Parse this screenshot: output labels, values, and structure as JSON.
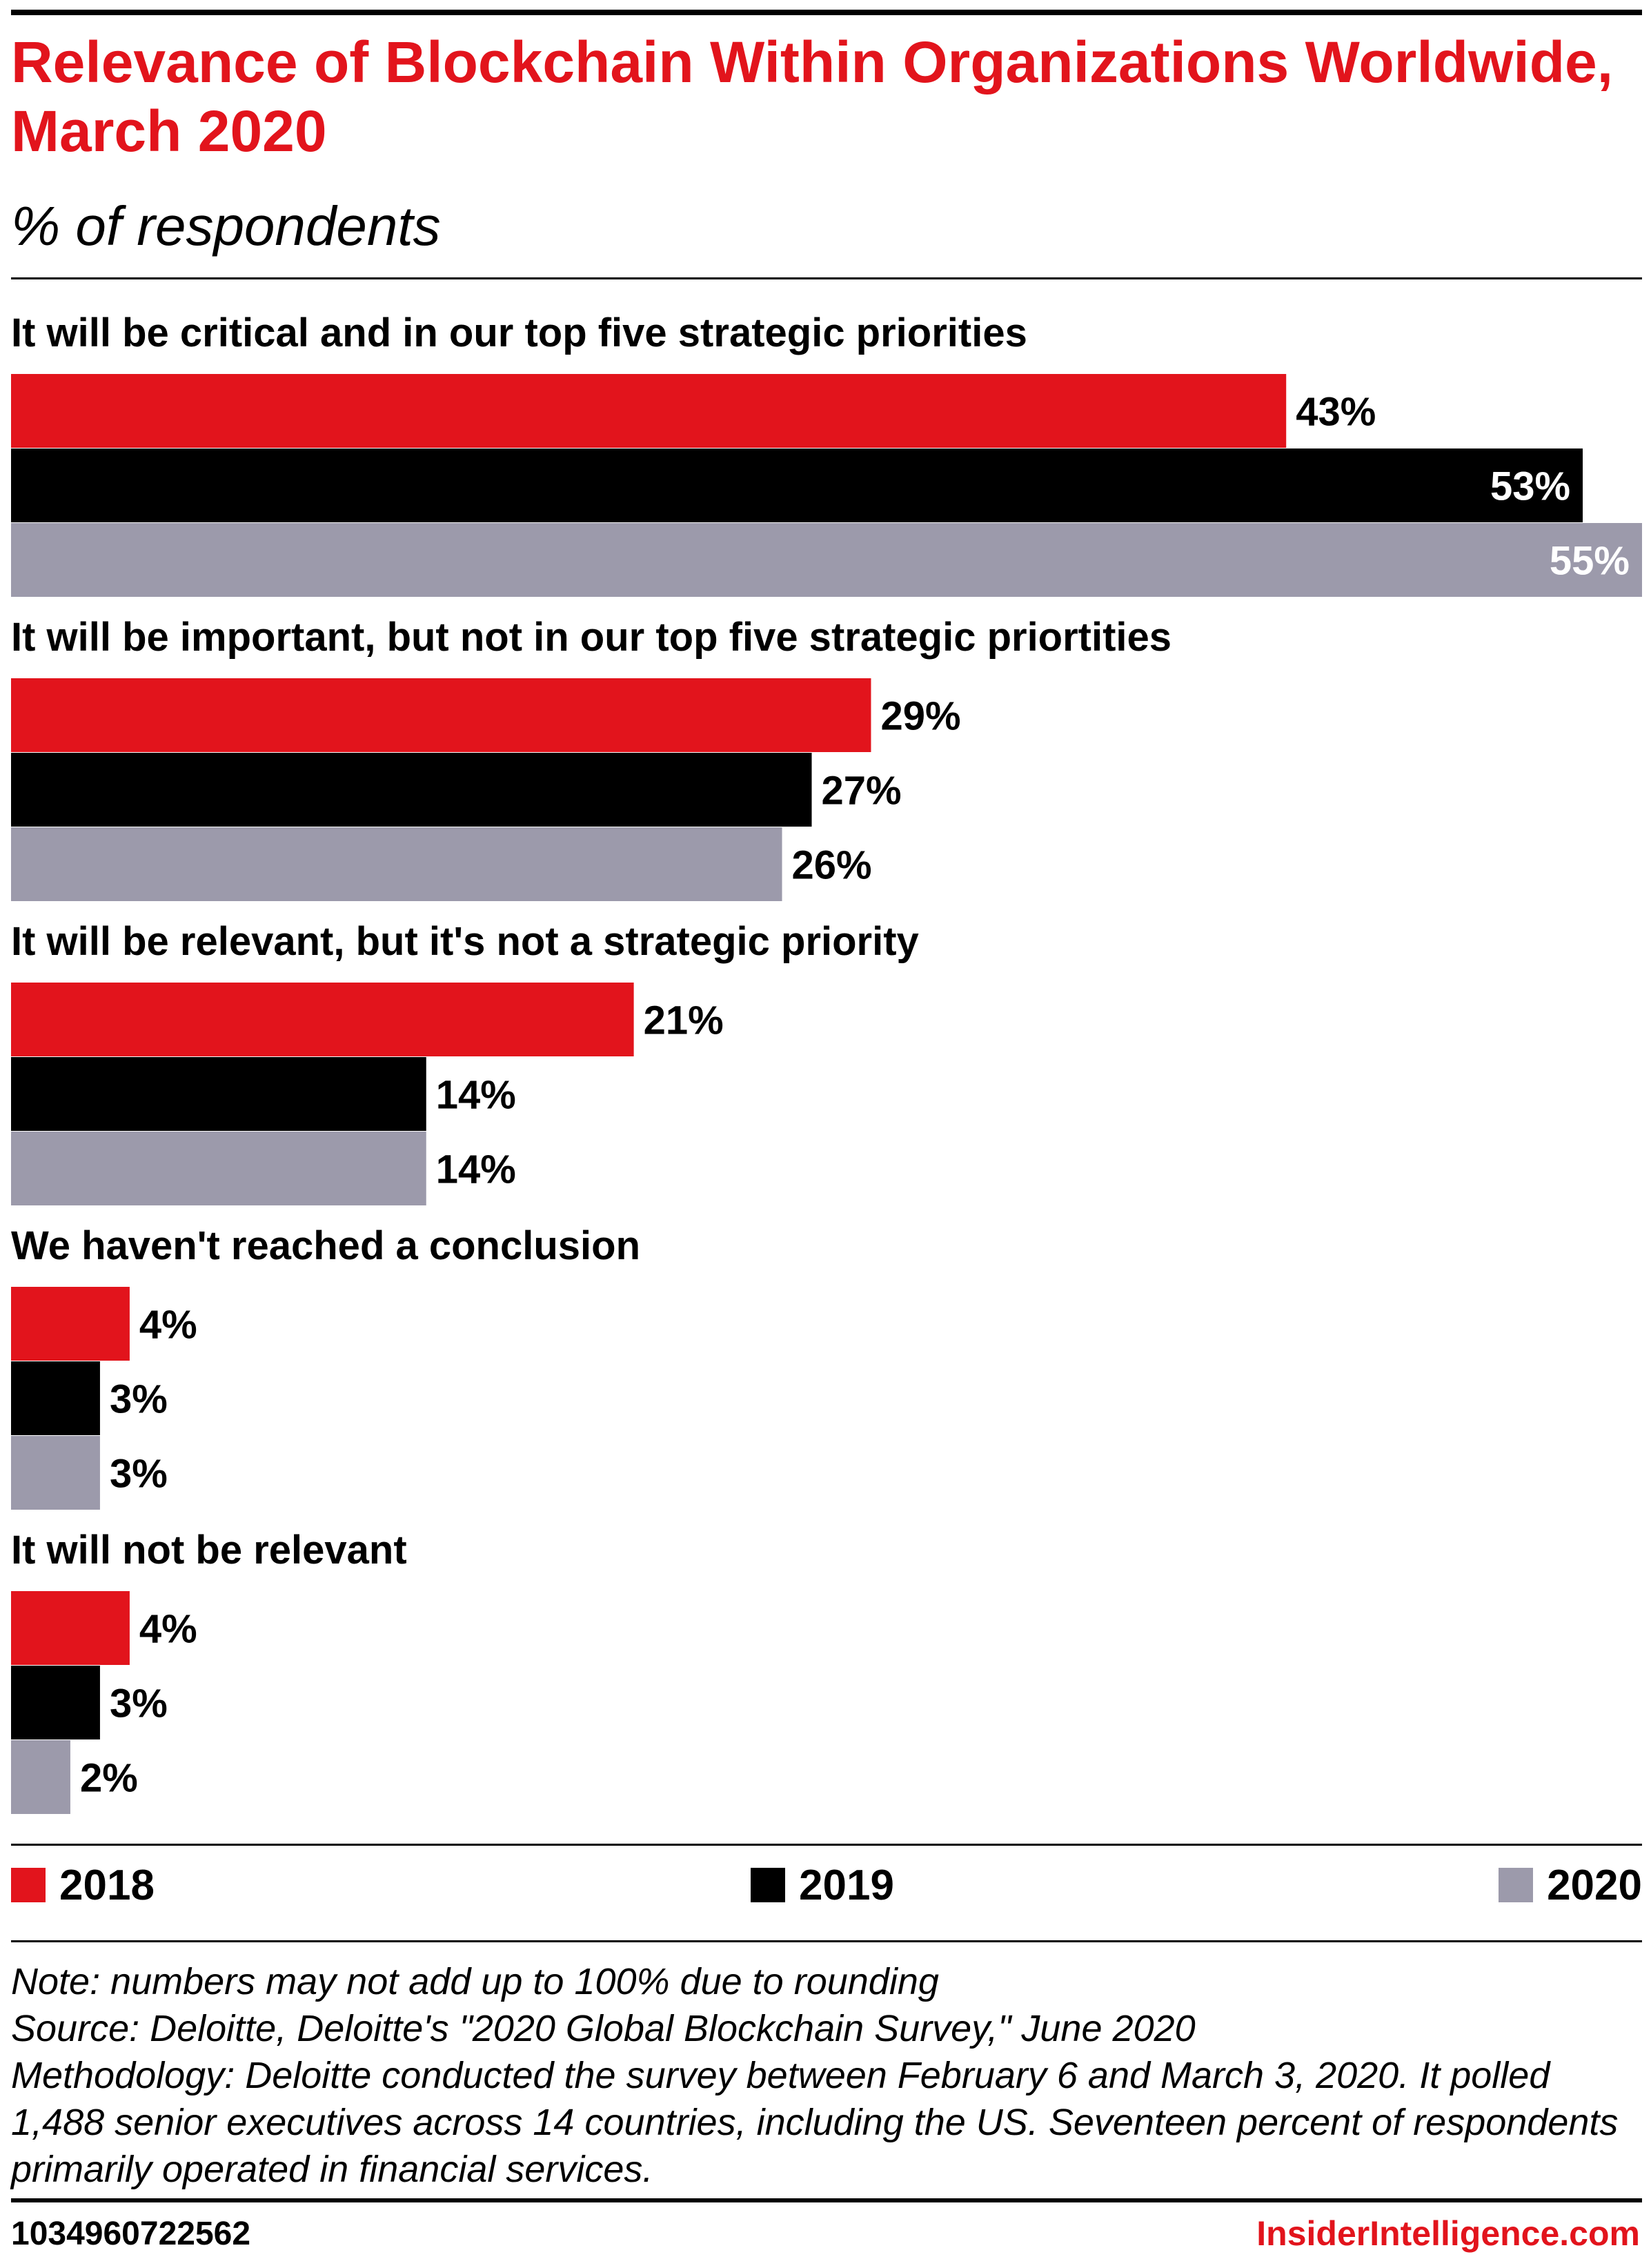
{
  "header": {
    "title": "Relevance of Blockchain Within Organizations Worldwide, March 2020",
    "subtitle": "% of respondents"
  },
  "colors": {
    "accent": "#e2141c",
    "series_2018": "#e2141c",
    "series_2019": "#000000",
    "series_2020": "#9c9aab"
  },
  "chart_data": {
    "type": "bar",
    "orientation": "horizontal",
    "title": "Relevance of Blockchain Within Organizations Worldwide, March 2020",
    "subtitle": "% of respondents",
    "categories": [
      "It will be critical and in our top five strategic priorities",
      "It will be important, but not in our top five strategic priortities",
      "It will be relevant, but it's not a strategic priority",
      "We haven't reached a conclusion",
      "It will not be relevant"
    ],
    "series": [
      {
        "name": "2018",
        "color": "#e2141c",
        "values": [
          43,
          29,
          21,
          4,
          4
        ],
        "labels": [
          "43%",
          "29%",
          "21%",
          "4%",
          "4%"
        ]
      },
      {
        "name": "2019",
        "color": "#000000",
        "values": [
          53,
          27,
          14,
          3,
          3
        ],
        "labels": [
          "53%",
          "27%",
          "14%",
          "3%",
          "3%"
        ]
      },
      {
        "name": "2020",
        "color": "#9c9aab",
        "values": [
          55,
          26,
          14,
          3,
          2
        ],
        "labels": [
          "55%",
          "26%",
          "14%",
          "3%",
          "2%"
        ]
      }
    ],
    "xlim": [
      0,
      55
    ],
    "grid": false,
    "legend": "bottom"
  },
  "legend": {
    "items": [
      {
        "label": "2018",
        "color": "#e2141c"
      },
      {
        "label": "2019",
        "color": "#000000"
      },
      {
        "label": "2020",
        "color": "#9c9aab"
      }
    ]
  },
  "notes": {
    "note": "Note: numbers may not add up to 100% due to rounding",
    "source": "Source: Deloitte, Deloitte's \"2020 Global Blockchain Survey,\" June 2020",
    "methodology": "Methodology: Deloitte conducted the survey between February 6 and March 3, 2020. It polled 1,488 senior executives across 14 countries, including the US. Seventeen percent of respondents primarily operated in financial services."
  },
  "footer": {
    "chart_id": "1034960722562",
    "brand": "InsiderIntelligence.com"
  }
}
